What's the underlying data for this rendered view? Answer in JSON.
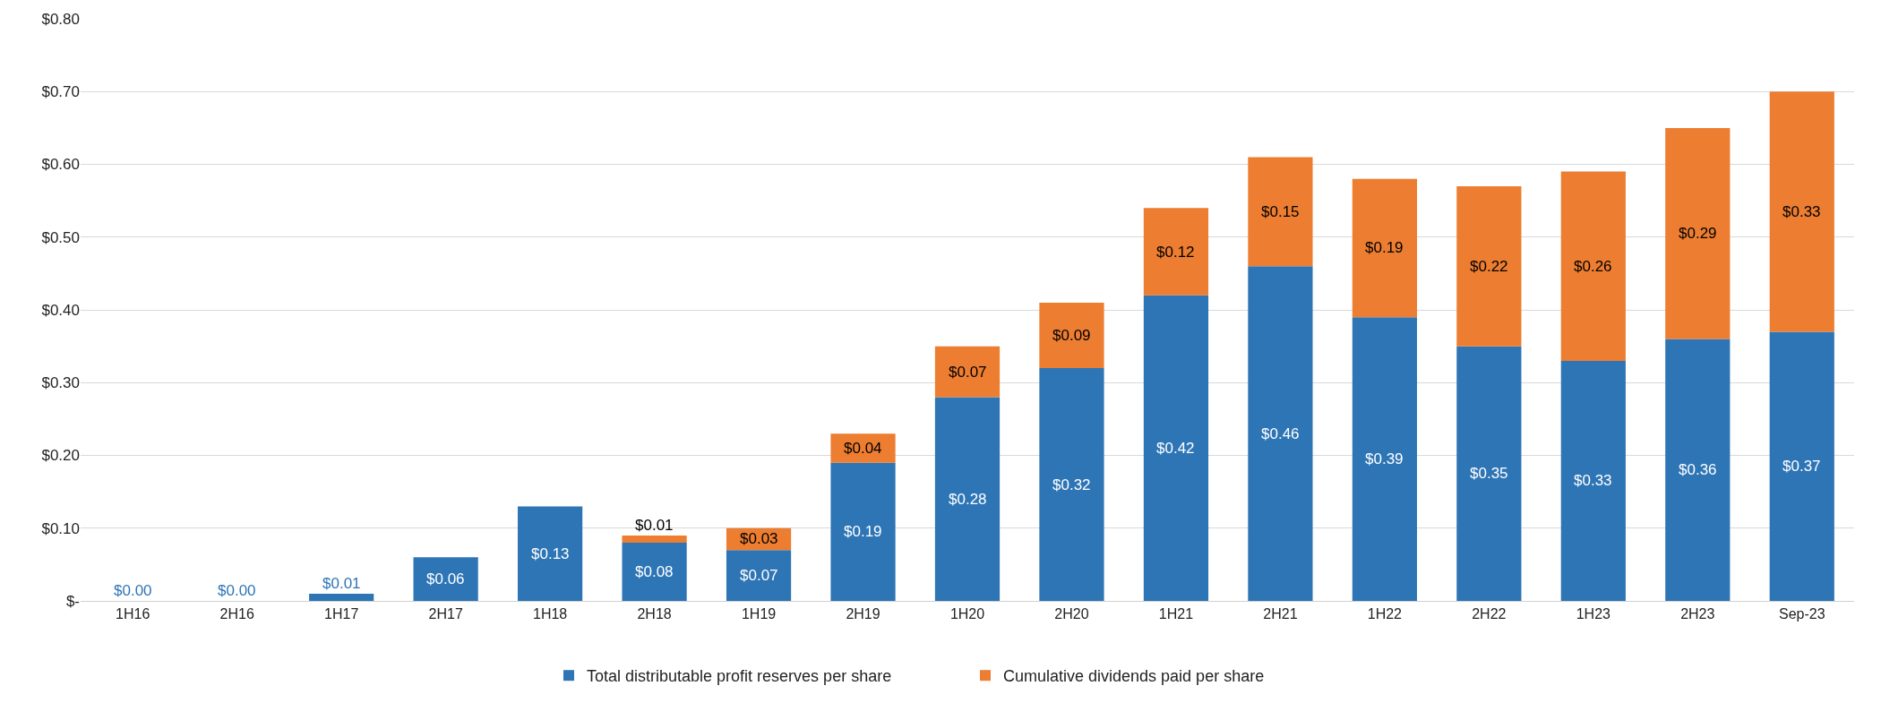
{
  "chart_data": {
    "type": "bar",
    "stacked": true,
    "categories": [
      "1H16",
      "2H16",
      "1H17",
      "2H17",
      "1H18",
      "2H18",
      "1H19",
      "2H19",
      "1H20",
      "2H20",
      "1H21",
      "2H21",
      "1H22",
      "2H22",
      "1H23",
      "2H23",
      "Sep-23"
    ],
    "series": [
      {
        "name": "Total distributable profit reserves per share",
        "color": "#2e75b6",
        "values": [
          0.0,
          0.0,
          0.01,
          0.06,
          0.13,
          0.08,
          0.07,
          0.19,
          0.28,
          0.32,
          0.42,
          0.46,
          0.39,
          0.35,
          0.33,
          0.36,
          0.37
        ],
        "value_labels": [
          "$0.00",
          "$0.00",
          "$0.01",
          "$0.06",
          "$0.13",
          "$0.08",
          "$0.07",
          "$0.19",
          "$0.28",
          "$0.32",
          "$0.42",
          "$0.46",
          "$0.39",
          "$0.35",
          "$0.33",
          "$0.36",
          "$0.37"
        ]
      },
      {
        "name": "Cumulative dividends paid per share",
        "color": "#ed7d31",
        "values": [
          null,
          null,
          null,
          null,
          null,
          0.01,
          0.03,
          0.04,
          0.07,
          0.09,
          0.12,
          0.15,
          0.19,
          0.22,
          0.26,
          0.29,
          0.33
        ],
        "value_labels": [
          null,
          null,
          null,
          null,
          null,
          "$0.01",
          "$0.03",
          "$0.04",
          "$0.07",
          "$0.09",
          "$0.12",
          "$0.15",
          "$0.19",
          "$0.22",
          "$0.26",
          "$0.29",
          "$0.33"
        ]
      }
    ],
    "ylim": [
      0,
      0.8
    ],
    "yticks": [
      {
        "value": 0,
        "label": "$-"
      },
      {
        "value": 0.1,
        "label": "$0.10"
      },
      {
        "value": 0.2,
        "label": "$0.20"
      },
      {
        "value": 0.3,
        "label": "$0.30"
      },
      {
        "value": 0.4,
        "label": "$0.40"
      },
      {
        "value": 0.5,
        "label": "$0.50"
      },
      {
        "value": 0.6,
        "label": "$0.60"
      },
      {
        "value": 0.7,
        "label": "$0.70"
      },
      {
        "value": 0.8,
        "label": "$0.80"
      }
    ],
    "grid": "y",
    "legend": "bottom"
  }
}
